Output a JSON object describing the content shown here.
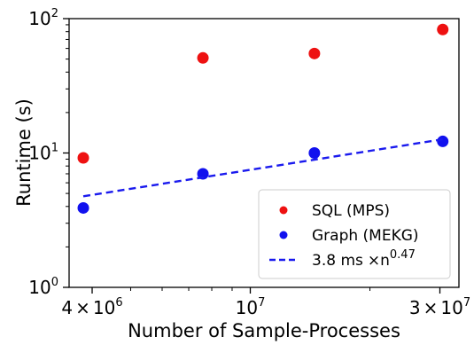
{
  "chart_data": {
    "type": "scatter",
    "xlabel": "Number of Sample-Processes",
    "ylabel": "Runtime (s)",
    "x_scale": "log",
    "y_scale": "log",
    "xlim": [
      3500000,
      33500000
    ],
    "ylim": [
      1,
      100
    ],
    "grid": false,
    "legend_position": "lower-right",
    "x_ticks": [
      {
        "value": 4000000,
        "mantissa": "4",
        "times": "×",
        "base": "10",
        "exp": "6"
      },
      {
        "value": 10000000,
        "mantissa": "",
        "times": "",
        "base": "10",
        "exp": "7"
      },
      {
        "value": 30000000,
        "mantissa": "3",
        "times": "×",
        "base": "10",
        "exp": "7"
      }
    ],
    "y_ticks": [
      {
        "value": 1,
        "base": "10",
        "exp": "0"
      },
      {
        "value": 10,
        "base": "10",
        "exp": "1"
      },
      {
        "value": 100,
        "base": "10",
        "exp": "2"
      }
    ],
    "series": [
      {
        "name": "SQL (MPS)",
        "kind": "scatter",
        "color": "#ee1111",
        "x": [
          3800000,
          7600000,
          14500000,
          30500000
        ],
        "y": [
          9.2,
          51,
          55,
          83
        ]
      },
      {
        "name": "Graph (MEKG)",
        "kind": "scatter",
        "color": "#1111ee",
        "x": [
          3800000,
          7600000,
          14500000,
          30500000
        ],
        "y": [
          3.9,
          7.0,
          10.0,
          12.2
        ]
      },
      {
        "kind": "line",
        "color": "#1a1aee",
        "dash": "dashed",
        "x": [
          3800000,
          30500000
        ],
        "y": [
          4.76,
          12.64
        ]
      }
    ],
    "legend": [
      {
        "label": "SQL (MPS)",
        "marker": "dot",
        "color": "#ee1111"
      },
      {
        "label": "Graph (MEKG)",
        "marker": "dot",
        "color": "#1111ee"
      },
      {
        "label_prefix": "3.8 ms",
        "label_times": "×",
        "label_base": "n",
        "label_exp": "0.47",
        "marker": "dashed-line",
        "color": "#1a1aee"
      }
    ]
  }
}
